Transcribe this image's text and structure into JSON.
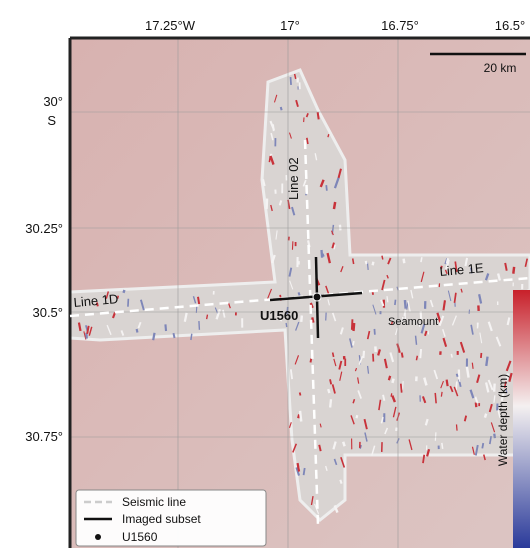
{
  "top_axis": {
    "labels": [
      "17.25°W",
      "17°",
      "16.75°",
      "16.5°"
    ]
  },
  "left_axis": {
    "labels": [
      "30°",
      "S",
      "30.25°",
      "30.5°",
      "30.75°"
    ]
  },
  "scale_bar": {
    "label": "20 km"
  },
  "annotations": {
    "line_02": "Line 02",
    "line_1e": "Line 1E",
    "line_1d": "Line 1D",
    "site": "U1560",
    "seamount": "Seamount"
  },
  "legend": {
    "items": [
      "Seismic line",
      "Imaged subset",
      "U1560"
    ]
  },
  "colorbar": {
    "label": "Water depth (km)"
  }
}
